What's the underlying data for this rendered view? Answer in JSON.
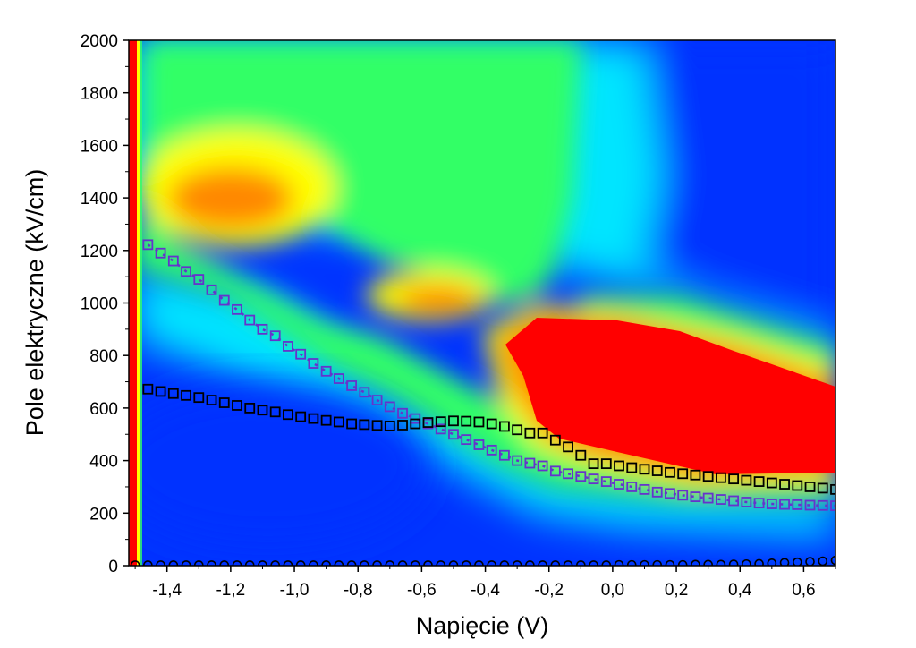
{
  "chart_data": {
    "type": "heatmap",
    "xlabel": "Napięcie (V)",
    "ylabel": "Pole elektryczne (kV/cm)",
    "xlim": [
      -1.52,
      0.7
    ],
    "ylim": [
      0,
      2000
    ],
    "x_ticks": [
      -1.4,
      -1.2,
      -1.0,
      -0.8,
      -0.6,
      -0.4,
      -0.2,
      0.0,
      0.2,
      0.4,
      0.6
    ],
    "x_tick_labels": [
      "-1,4",
      "-1,2",
      "-1,0",
      "-0,8",
      "-0,6",
      "-0,4",
      "-0,2",
      "0,0",
      "0,2",
      "0,4",
      "0,6"
    ],
    "y_ticks": [
      0,
      200,
      400,
      600,
      800,
      1000,
      1200,
      1400,
      1600,
      1800,
      2000
    ],
    "y_tick_labels": [
      "0",
      "200",
      "400",
      "600",
      "800",
      "1000",
      "1200",
      "1400",
      "1600",
      "1800",
      "2000"
    ],
    "grid": false,
    "colormap": [
      "#0033ff",
      "#00e5ff",
      "#33ff66",
      "#ffff00",
      "#ff8800",
      "#ff0000"
    ],
    "series": [
      {
        "marker": "square",
        "color": "#6633cc",
        "x": [
          -1.46,
          -1.42,
          -1.38,
          -1.34,
          -1.3,
          -1.26,
          -1.22,
          -1.18,
          -1.14,
          -1.1,
          -1.06,
          -1.02,
          -0.98,
          -0.94,
          -0.9,
          -0.86,
          -0.82,
          -0.78,
          -0.74,
          -0.7,
          -0.66,
          -0.62,
          -0.58,
          -0.54,
          -0.5,
          -0.46,
          -0.42,
          -0.38,
          -0.34,
          -0.3,
          -0.26,
          -0.22,
          -0.18,
          -0.14,
          -0.1,
          -0.06,
          -0.02,
          0.02,
          0.06,
          0.1,
          0.14,
          0.18,
          0.22,
          0.26,
          0.3,
          0.34,
          0.38,
          0.42,
          0.46,
          0.5,
          0.54,
          0.58,
          0.62,
          0.66,
          0.7
        ],
        "y": [
          1222,
          1190,
          1160,
          1120,
          1090,
          1050,
          1010,
          975,
          935,
          900,
          875,
          835,
          805,
          770,
          740,
          712,
          685,
          660,
          630,
          605,
          580,
          560,
          540,
          520,
          500,
          480,
          460,
          440,
          420,
          400,
          390,
          380,
          360,
          350,
          340,
          330,
          320,
          310,
          300,
          290,
          280,
          275,
          268,
          262,
          257,
          252,
          247,
          242,
          238,
          235,
          233,
          232,
          230,
          229,
          228
        ]
      },
      {
        "marker": "square",
        "color": "#000000",
        "x": [
          -1.46,
          -1.42,
          -1.38,
          -1.34,
          -1.3,
          -1.26,
          -1.22,
          -1.18,
          -1.14,
          -1.1,
          -1.06,
          -1.02,
          -0.98,
          -0.94,
          -0.9,
          -0.86,
          -0.82,
          -0.78,
          -0.74,
          -0.7,
          -0.66,
          -0.62,
          -0.58,
          -0.54,
          -0.5,
          -0.46,
          -0.42,
          -0.38,
          -0.34,
          -0.3,
          -0.26,
          -0.22,
          -0.18,
          -0.14,
          -0.1,
          -0.06,
          -0.02,
          0.02,
          0.06,
          0.1,
          0.14,
          0.18,
          0.22,
          0.26,
          0.3,
          0.34,
          0.38,
          0.42,
          0.46,
          0.5,
          0.54,
          0.58,
          0.62,
          0.66,
          0.7
        ],
        "y": [
          672,
          663,
          655,
          648,
          640,
          630,
          620,
          610,
          600,
          592,
          585,
          575,
          567,
          560,
          553,
          547,
          540,
          537,
          534,
          532,
          535,
          540,
          545,
          548,
          551,
          550,
          547,
          540,
          530,
          517,
          505,
          505,
          478,
          452,
          420,
          388,
          388,
          380,
          373,
          367,
          361,
          355,
          350,
          345,
          340,
          335,
          330,
          325,
          320,
          315,
          310,
          305,
          300,
          295,
          290
        ]
      },
      {
        "marker": "circle",
        "color": "#000000",
        "x": [
          -1.5,
          -1.46,
          -1.42,
          -1.38,
          -1.34,
          -1.3,
          -1.26,
          -1.22,
          -1.18,
          -1.14,
          -1.1,
          -1.06,
          -1.02,
          -0.98,
          -0.94,
          -0.9,
          -0.86,
          -0.82,
          -0.78,
          -0.74,
          -0.7,
          -0.66,
          -0.62,
          -0.58,
          -0.54,
          -0.5,
          -0.46,
          -0.42,
          -0.38,
          -0.34,
          -0.3,
          -0.26,
          -0.22,
          -0.18,
          -0.14,
          -0.1,
          -0.06,
          -0.02,
          0.02,
          0.06,
          0.1,
          0.14,
          0.18,
          0.22,
          0.26,
          0.3,
          0.34,
          0.38,
          0.42,
          0.46,
          0.5,
          0.54,
          0.58,
          0.62,
          0.66,
          0.7
        ],
        "y": [
          2,
          2,
          2,
          2,
          2,
          2,
          2,
          2,
          2,
          2,
          2,
          2,
          2,
          2,
          2,
          2,
          2,
          2,
          2,
          2,
          2,
          2,
          2,
          2,
          2,
          2,
          2,
          2,
          2,
          2,
          2,
          2,
          2,
          2,
          2,
          2,
          2,
          2,
          3,
          3,
          3,
          3,
          3,
          3,
          4,
          4,
          4,
          5,
          6,
          7,
          9,
          11,
          13,
          15,
          17,
          20
        ]
      }
    ]
  }
}
